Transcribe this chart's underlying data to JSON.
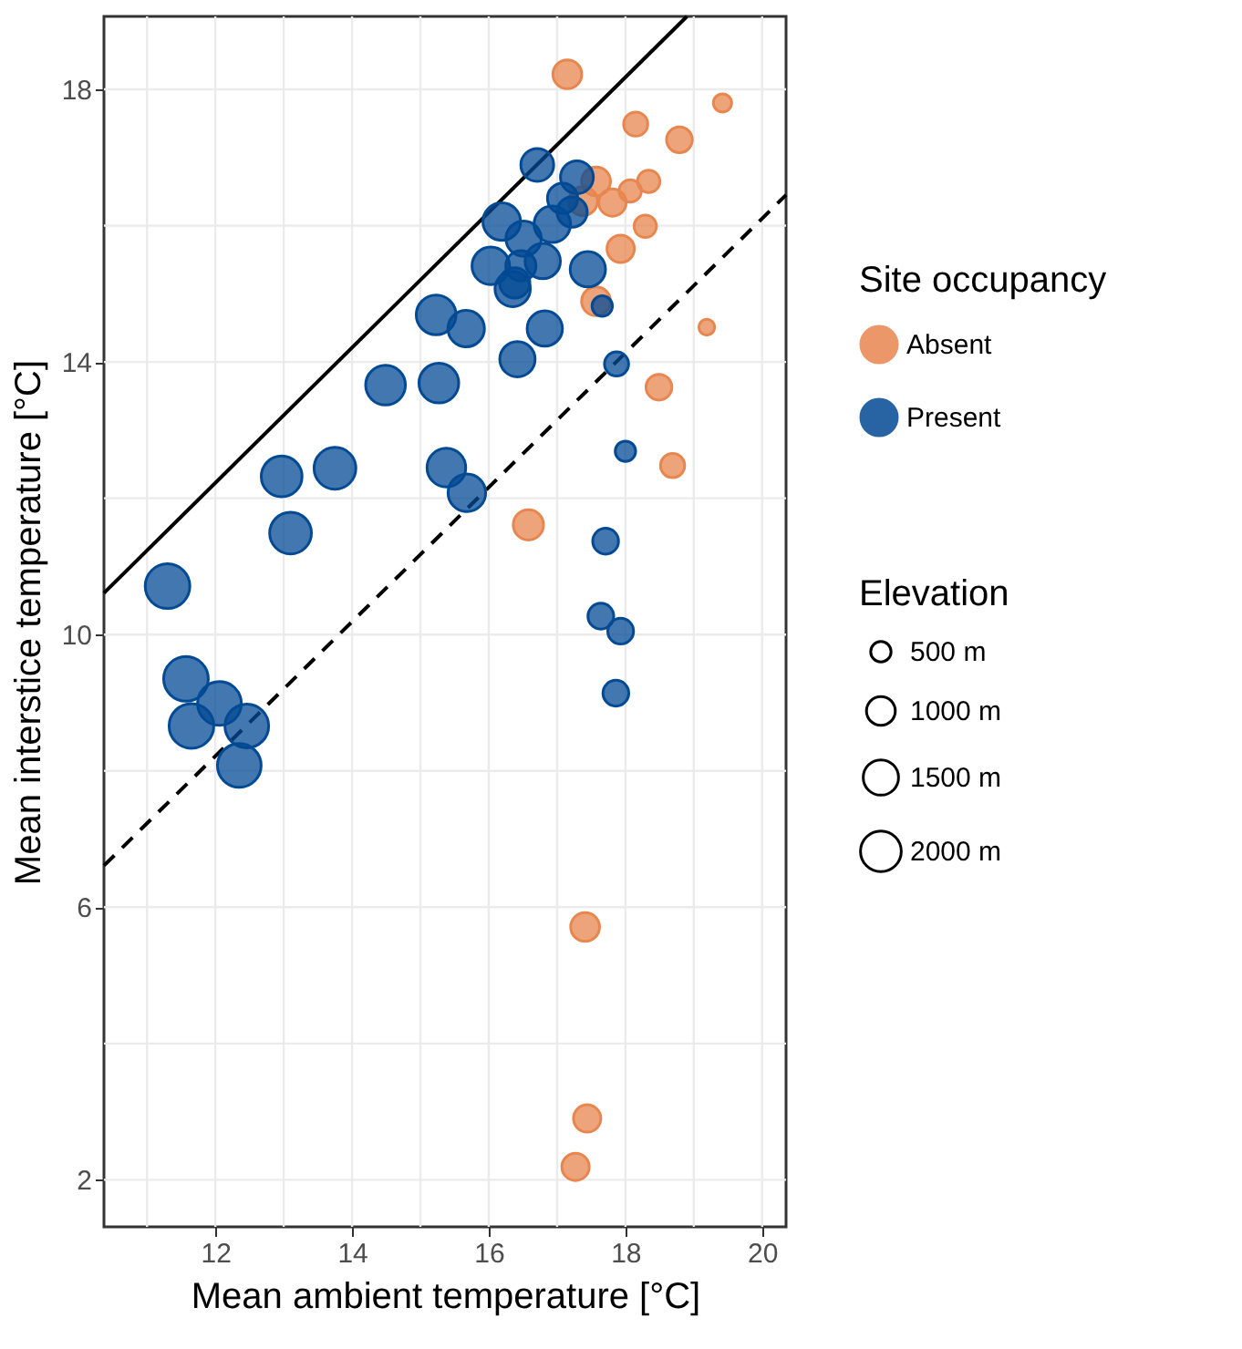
{
  "chart_data": {
    "type": "bubble",
    "xlabel": "Mean ambient temperature [°C]",
    "ylabel": "Mean interstice temperature [°C]",
    "legend_title": [
      "Site occupancy",
      "Elevation"
    ],
    "xlim": [
      10.37,
      20.35
    ],
    "ylim": [
      1.31,
      19.07
    ],
    "xticks": [
      {
        "value": 11,
        "label": null
      },
      12,
      {
        "value": 13,
        "label": null
      },
      14,
      {
        "value": 15,
        "label": null
      },
      16,
      {
        "value": 17,
        "label": null
      },
      18,
      {
        "value": 19,
        "label": null
      },
      20
    ],
    "yticks": [
      2,
      {
        "value": 4,
        "label": null
      },
      6,
      {
        "value": 8,
        "label": null
      },
      10,
      {
        "value": 12,
        "label": null
      },
      14,
      {
        "value": 16,
        "label": null
      },
      18
    ],
    "size_legend": [
      {
        "value": 500,
        "label": "500 m"
      },
      {
        "value": 1000,
        "label": "1000 m"
      },
      {
        "value": 1500,
        "label": "1500 m"
      },
      {
        "value": 2000,
        "label": "2000 m"
      }
    ],
    "grid": true,
    "legend": "right",
    "marker": "circle",
    "series": [
      {
        "name": "Absent",
        "color": "#e8864f",
        "x": [
          17.15,
          19.42,
          18.15,
          18.79,
          17.57,
          17.38,
          17.81,
          18.07,
          18.34,
          18.29,
          17.93,
          17.57,
          19.19,
          18.49,
          18.69,
          16.58,
          17.41,
          17.44,
          17.27
        ],
        "values": [
          18.22,
          17.8,
          17.49,
          17.26,
          16.65,
          16.36,
          16.34,
          16.51,
          16.65,
          15.99,
          15.66,
          14.89,
          14.51,
          13.63,
          12.48,
          11.61,
          5.71,
          2.9,
          2.19
        ],
        "sizes": [
          1000,
          400,
          700,
          800,
          1000,
          1000,
          900,
          600,
          600,
          600,
          900,
          1000,
          300,
          800,
          700,
          1100,
          1000,
          900,
          900
        ]
      },
      {
        "name": "Present",
        "color": "#034a94",
        "x": [
          16.71,
          17.29,
          17.08,
          17.22,
          16.93,
          16.19,
          16.51,
          16.03,
          16.47,
          16.79,
          17.45,
          16.35,
          16.38,
          17.66,
          15.23,
          15.67,
          16.82,
          16.42,
          17.87,
          14.49,
          15.27,
          18.0,
          12.97,
          13.75,
          15.38,
          15.68,
          13.1,
          17.71,
          11.3,
          17.64,
          17.93,
          17.86,
          11.57,
          12.06,
          11.65,
          12.46,
          12.35
        ],
        "values": [
          16.89,
          16.71,
          16.4,
          16.2,
          16.02,
          16.06,
          15.81,
          15.41,
          15.41,
          15.48,
          15.36,
          15.07,
          15.16,
          14.82,
          14.69,
          14.49,
          14.49,
          14.04,
          13.97,
          13.66,
          13.69,
          12.69,
          12.32,
          12.44,
          12.45,
          12.08,
          11.49,
          11.37,
          10.71,
          10.27,
          10.05,
          9.14,
          9.35,
          8.99,
          8.66,
          8.66,
          8.08
        ],
        "sizes": [
          1300,
          1300,
          1100,
          1100,
          1600,
          1700,
          1500,
          1700,
          1100,
          1500,
          1500,
          1500,
          1100,
          500,
          1900,
          1600,
          1500,
          1500,
          700,
          1900,
          1900,
          500,
          2000,
          2100,
          1800,
          1700,
          2100,
          800,
          2400,
          800,
          800,
          800,
          2400,
          2300,
          2400,
          2300,
          2300
        ]
      },
      {
        "type": "line",
        "color": "#000000",
        "marker": "none",
        "line_style": "solid",
        "x": [
          10.37,
          18.9
        ],
        "values": [
          10.61,
          19.07
        ]
      },
      {
        "type": "line",
        "color": "#000000",
        "marker": "none",
        "line_style": "dashed",
        "x": [
          10.37,
          20.35
        ],
        "values": [
          6.61,
          16.45
        ]
      }
    ]
  }
}
